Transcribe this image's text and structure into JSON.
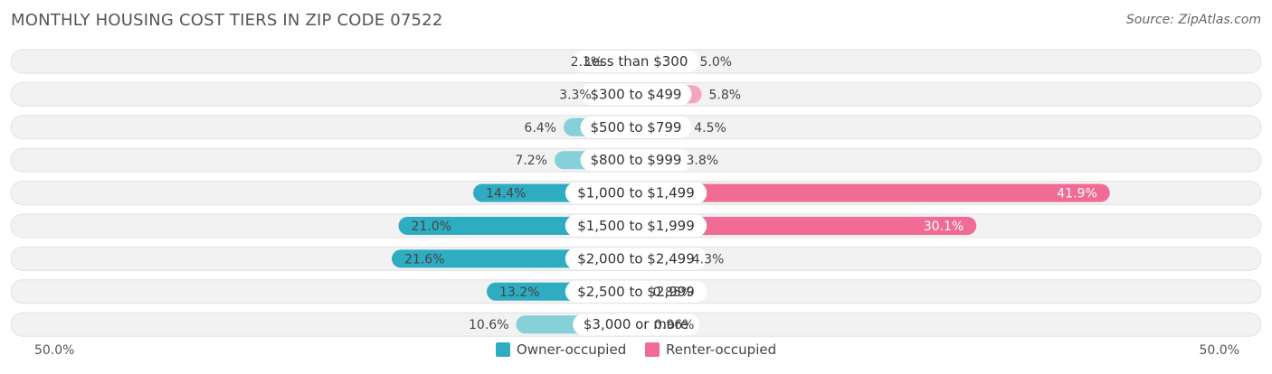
{
  "title": "MONTHLY HOUSING COST TIERS IN ZIP CODE 07522",
  "source": "Source: ZipAtlas.com",
  "axis": {
    "left_label": "50.0%",
    "right_label": "50.0%"
  },
  "legend": [
    {
      "label": "Owner-occupied",
      "color": "#2eacc1"
    },
    {
      "label": "Renter-occupied",
      "color": "#f06c95"
    }
  ],
  "chart_data": {
    "type": "bar",
    "orientation": "diverging-horizontal",
    "categories": [
      "Less than $300",
      "$300 to $499",
      "$500 to $799",
      "$800 to $999",
      "$1,000 to $1,499",
      "$1,500 to $1,999",
      "$2,000 to $2,499",
      "$2,500 to $2,999",
      "$3,000 or more"
    ],
    "series": [
      {
        "name": "Owner-occupied",
        "values": [
          2.3,
          3.3,
          6.4,
          7.2,
          14.4,
          21.0,
          21.6,
          13.2,
          10.6
        ],
        "labels": [
          "2.3%",
          "3.3%",
          "6.4%",
          "7.2%",
          "14.4%",
          "21.0%",
          "21.6%",
          "13.2%",
          "10.6%"
        ],
        "color_strong": "#2eacc1",
        "color_light": "#86d0da"
      },
      {
        "name": "Renter-occupied",
        "values": [
          5.0,
          5.8,
          4.5,
          3.8,
          41.9,
          30.1,
          4.3,
          0.85,
          0.96
        ],
        "labels": [
          "5.0%",
          "5.8%",
          "4.5%",
          "3.8%",
          "41.9%",
          "30.1%",
          "4.3%",
          "0.85%",
          "0.96%"
        ],
        "color_strong": "#f06c95",
        "color_light": "#f6a5c0"
      }
    ],
    "xlim": [
      -50,
      50
    ],
    "legend_position": "bottom-center"
  }
}
